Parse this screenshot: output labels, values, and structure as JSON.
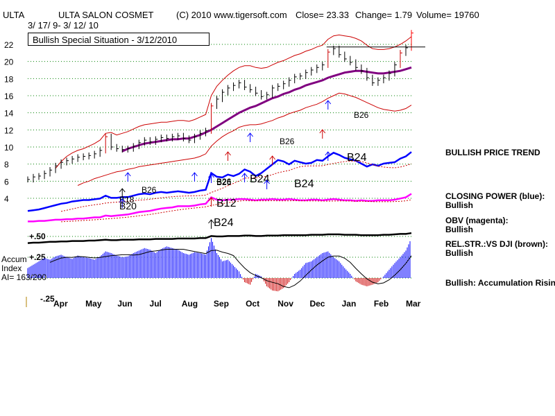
{
  "header": {
    "ticker": "ULTA",
    "company": "ULTA SALON COSMET",
    "copyright": "(C) 2010 www.tigersoft.com",
    "close": "Close=  23.33",
    "change": "Change= 1.79",
    "volume": "Volume= 19760",
    "date_range": "3/ 17/ 9- 3/ 12/ 10",
    "banner": "Bullish Special Situation - 3/12/2010"
  },
  "right_panel": {
    "price_trend": "BULLISH PRICE TREND",
    "closing_power_label": "CLOSING POWER (blue):",
    "closing_power_value": "Bullish",
    "obv_label": "OBV (magenta):",
    "obv_value": "Bullish",
    "relstr_label": "REL.STR.:VS DJI (brown):",
    "relstr_value": "Bullish",
    "accum_note": "Bullish: Accumulation Rising"
  },
  "accum_label": {
    "line1": "Accum",
    "line2": "Index",
    "line3": "AI= 163/200"
  },
  "colors": {
    "price_bar": "#000000",
    "band": "#cc0000",
    "ma": "#800080",
    "closing_power": "#0000ff",
    "obv": "#ff00ff",
    "relstr": "#000000",
    "accum_pos": "#0000ff",
    "accum_neg": "#cc0000",
    "grid": "#008000"
  },
  "chart_data": {
    "type": "line",
    "title": "ULTA SALON COSMET",
    "x_labels": [
      "Apr",
      "May",
      "Jun",
      "Jul",
      "Aug",
      "Sep",
      "Oct",
      "Nov",
      "Dec",
      "Jan",
      "Feb",
      "Mar"
    ],
    "price_axis_ticks": [
      4,
      6,
      8,
      10,
      12,
      14,
      16,
      18,
      20,
      22
    ],
    "price_ylim": [
      3,
      23
    ],
    "accum_ticks": [
      "+.50",
      "+.25",
      "-.25"
    ],
    "resistance_level": 21.7,
    "grid": true,
    "series": [
      {
        "name": "Price",
        "values": [
          6.2,
          6.5,
          6.6,
          6.9,
          7.3,
          7.8,
          8.2,
          8.4,
          8.6,
          8.8,
          8.9,
          9.0,
          9.2,
          9.6,
          11.2,
          10.0,
          9.8,
          9.7,
          9.8,
          10.1,
          10.5,
          10.8,
          10.6,
          10.9,
          11.1,
          11.0,
          11.2,
          11.3,
          11.0,
          10.8,
          11.2,
          11.6,
          11.9,
          14.8,
          15.6,
          16.4,
          16.9,
          17.2,
          17.5,
          17.0,
          16.7,
          16.3,
          15.9,
          16.1,
          16.9,
          17.1,
          17.4,
          17.8,
          18.2,
          18.3,
          18.7,
          19.0,
          19.3,
          19.6,
          21.1,
          21.5,
          20.8,
          20.3,
          19.9,
          19.3,
          18.9,
          18.1,
          17.5,
          17.8,
          18.1,
          18.6,
          19.6,
          21.0,
          21.6,
          23.33
        ]
      },
      {
        "name": "Moving average",
        "values": [
          null,
          null,
          null,
          null,
          null,
          null,
          null,
          null,
          null,
          null,
          null,
          null,
          null,
          null,
          null,
          null,
          null,
          9.5,
          9.8,
          10.0,
          10.2,
          10.4,
          10.5,
          10.6,
          10.7,
          10.8,
          10.9,
          10.9,
          11.0,
          11.0,
          11.2,
          11.4,
          11.7,
          12.0,
          12.4,
          12.8,
          13.2,
          13.6,
          14.0,
          14.3,
          14.6,
          14.8,
          15.1,
          15.4,
          15.7,
          15.9,
          16.2,
          16.4,
          16.7,
          16.9,
          17.2,
          17.4,
          17.6,
          17.8,
          18.1,
          18.3,
          18.5,
          18.7,
          18.8,
          18.9,
          18.9,
          18.8,
          18.7,
          18.6,
          18.6,
          18.7,
          18.8,
          18.9,
          19.1,
          19.3
        ]
      },
      {
        "name": "Upper band",
        "values": [
          null,
          null,
          null,
          null,
          null,
          7.5,
          8.3,
          8.9,
          9.3,
          9.6,
          9.8,
          10.1,
          10.4,
          10.8,
          11.6,
          11.7,
          11.4,
          11.6,
          11.8,
          12.1,
          12.4,
          12.6,
          12.7,
          12.8,
          12.9,
          12.9,
          13.0,
          13.1,
          13.1,
          13.0,
          13.2,
          13.5,
          13.8,
          16.0,
          17.1,
          17.8,
          18.4,
          18.9,
          19.3,
          19.5,
          19.5,
          19.3,
          19.2,
          19.3,
          19.6,
          19.9,
          20.1,
          20.4,
          20.7,
          20.9,
          21.2,
          21.4,
          21.7,
          21.9,
          22.6,
          23.0,
          23.1,
          23.0,
          22.9,
          22.7,
          22.4,
          21.9,
          21.5,
          21.4,
          21.4,
          21.5,
          21.7,
          22.0,
          22.4,
          22.9
        ]
      },
      {
        "name": "Lower band",
        "values": [
          null,
          null,
          null,
          null,
          null,
          null,
          null,
          null,
          null,
          5.5,
          5.8,
          6.0,
          6.3,
          6.5,
          6.7,
          6.9,
          7.1,
          7.2,
          7.4,
          7.5,
          7.7,
          7.8,
          7.9,
          8.0,
          8.1,
          8.2,
          8.3,
          8.4,
          8.5,
          8.6,
          8.7,
          8.9,
          9.2,
          10.1,
          10.7,
          11.2,
          11.6,
          11.9,
          12.3,
          12.5,
          12.6,
          12.6,
          12.7,
          12.9,
          13.1,
          13.4,
          13.6,
          13.9,
          14.1,
          14.3,
          14.6,
          14.8,
          15.0,
          15.3,
          15.7,
          16.0,
          16.3,
          16.2,
          16.0,
          15.8,
          15.5,
          15.2,
          14.9,
          14.6,
          14.4,
          14.3,
          14.2,
          14.3,
          14.5,
          14.9
        ]
      },
      {
        "name": "Closing Power",
        "values": [
          1.5,
          1.6,
          1.7,
          1.9,
          2.1,
          2.3,
          2.5,
          2.6,
          2.8,
          2.9,
          3.0,
          3.0,
          3.1,
          3.2,
          3.6,
          3.3,
          3.3,
          3.4,
          3.4,
          3.6,
          3.8,
          3.9,
          3.8,
          4.0,
          4.1,
          4.0,
          4.1,
          4.2,
          4.1,
          4.0,
          4.1,
          4.3,
          4.4,
          6.7,
          6.2,
          6.1,
          6.5,
          6.3,
          6.6,
          7.2,
          6.9,
          6.3,
          6.7,
          7.3,
          7.9,
          8.5,
          8.3,
          7.9,
          8.4,
          8.2,
          8.0,
          8.1,
          8.5,
          8.4,
          9.0,
          9.5,
          9.2,
          8.8,
          8.6,
          8.4,
          8.0,
          7.6,
          7.9,
          7.7,
          8.0,
          8.1,
          8.2,
          8.7,
          9.0,
          9.6
        ]
      },
      {
        "name": "OBV",
        "values": [
          0.3,
          0.3,
          0.4,
          0.4,
          0.5,
          0.6,
          0.6,
          0.7,
          0.7,
          0.8,
          0.8,
          0.9,
          1.0,
          1.0,
          1.3,
          1.2,
          1.3,
          1.4,
          1.5,
          1.7,
          1.9,
          2.0,
          2.1,
          2.3,
          2.5,
          2.6,
          2.7,
          2.9,
          2.9,
          2.9,
          3.0,
          3.2,
          3.3,
          4.4,
          4.0,
          3.9,
          4.0,
          4.0,
          4.1,
          4.1,
          4.0,
          3.9,
          4.0,
          4.0,
          4.1,
          4.0,
          4.0,
          4.1,
          4.0,
          3.9,
          3.9,
          4.0,
          4.0,
          3.9,
          4.0,
          4.1,
          4.0,
          3.9,
          3.9,
          3.8,
          3.9,
          3.8,
          3.8,
          3.9,
          3.9,
          3.9,
          4.0,
          4.2,
          4.4,
          5.0
        ]
      },
      {
        "name": "Rel Str vs DJI",
        "values": [
          0.9,
          1.0,
          1.0,
          1.1,
          1.2,
          1.2,
          1.3,
          1.3,
          1.4,
          1.4,
          1.4,
          1.5,
          1.5,
          1.6,
          1.7,
          1.6,
          1.6,
          1.7,
          1.7,
          1.7,
          1.8,
          1.8,
          1.8,
          1.9,
          1.9,
          1.9,
          1.9,
          2.0,
          2.0,
          2.0,
          2.0,
          2.1,
          2.1,
          2.6,
          2.5,
          2.5,
          2.6,
          2.6,
          2.6,
          2.7,
          2.7,
          2.6,
          2.6,
          2.7,
          2.7,
          2.7,
          2.8,
          2.8,
          2.8,
          2.8,
          2.8,
          2.9,
          2.9,
          2.9,
          3.0,
          3.0,
          3.0,
          2.9,
          2.9,
          2.9,
          2.8,
          2.8,
          2.8,
          2.8,
          2.9,
          2.9,
          3.0,
          3.1,
          3.1,
          3.3
        ]
      },
      {
        "name": "Accum Index",
        "values": [
          0.12,
          0.16,
          0.2,
          0.24,
          0.22,
          0.26,
          0.28,
          0.25,
          0.23,
          0.27,
          0.25,
          0.24,
          0.22,
          0.26,
          0.32,
          0.3,
          0.27,
          0.25,
          0.26,
          0.3,
          0.33,
          0.36,
          0.34,
          0.3,
          0.35,
          0.38,
          0.36,
          0.34,
          0.3,
          0.28,
          0.31,
          0.3,
          0.28,
          0.48,
          0.3,
          0.2,
          0.22,
          0.15,
          0.08,
          -0.05,
          -0.08,
          0.05,
          0.02,
          -0.1,
          -0.15,
          -0.16,
          -0.12,
          -0.05,
          0.05,
          0.1,
          0.18,
          0.2,
          0.25,
          0.3,
          0.32,
          0.25,
          0.2,
          0.12,
          0.05,
          -0.04,
          -0.08,
          -0.1,
          -0.08,
          -0.05,
          0.02,
          0.1,
          0.18,
          0.25,
          0.33,
          0.48
        ]
      }
    ],
    "annotations": [
      "B26",
      "B18",
      "B20",
      "B26",
      "B26",
      "B24",
      "B12",
      "B24",
      "B26",
      "B24",
      "B24",
      "B26"
    ]
  }
}
